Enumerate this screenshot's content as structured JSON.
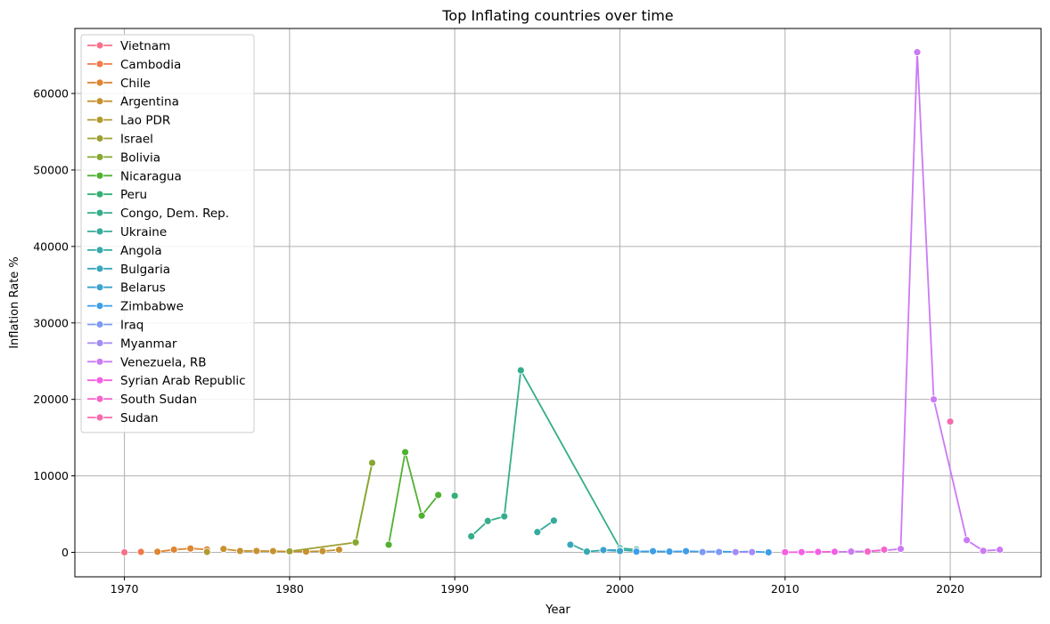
{
  "chart_data": {
    "type": "line",
    "title": "Top Inflating countries over time",
    "xlabel": "Year",
    "ylabel": "Inflation Rate %",
    "xlim": [
      1967,
      2025.5
    ],
    "ylim": [
      -3200,
      68500
    ],
    "x_ticks": [
      1970,
      1980,
      1990,
      2000,
      2010,
      2020
    ],
    "y_ticks": [
      0,
      10000,
      20000,
      30000,
      40000,
      50000,
      60000
    ],
    "grid": true,
    "legend_position": "upper-left",
    "series": [
      {
        "name": "Vietnam",
        "color": "#f77189",
        "points": [
          [
            1970,
            0
          ]
        ]
      },
      {
        "name": "Cambodia",
        "color": "#f17a4c",
        "points": [
          [
            1971,
            60
          ]
        ]
      },
      {
        "name": "Chile",
        "color": "#de8632",
        "points": [
          [
            1972,
            80
          ],
          [
            1973,
            350
          ],
          [
            1974,
            500
          ],
          [
            1975,
            380
          ]
        ]
      },
      {
        "name": "Argentina",
        "color": "#c69230",
        "points": [
          [
            1976,
            440
          ],
          [
            1977,
            180
          ],
          [
            1978,
            180
          ],
          [
            1979,
            160
          ],
          [
            1980,
            100
          ],
          [
            1981,
            100
          ],
          [
            1982,
            160
          ],
          [
            1983,
            340
          ]
        ]
      },
      {
        "name": "Lao PDR",
        "color": "#b19b31",
        "points": [
          [
            1975,
            60
          ]
        ]
      },
      {
        "name": "Israel",
        "color": "#9ea031",
        "points": [
          [
            1980,
            130
          ],
          [
            1984,
            1300
          ],
          [
            1985,
            11700
          ]
        ]
      },
      {
        "name": "Bolivia",
        "color": "#86a831",
        "points": [
          [
            1984,
            1300
          ],
          [
            1985,
            11700
          ]
        ]
      },
      {
        "name": "Nicaragua",
        "color": "#50b131",
        "points": [
          [
            1986,
            1000
          ],
          [
            1987,
            13100
          ],
          [
            1988,
            4800
          ],
          [
            1989,
            7500
          ]
        ]
      },
      {
        "name": "Peru",
        "color": "#33b073",
        "points": [
          [
            1990,
            7400
          ]
        ]
      },
      {
        "name": "Congo, Dem. Rep.",
        "color": "#35ad8b",
        "points": [
          [
            1991,
            2100
          ],
          [
            1992,
            4100
          ],
          [
            1993,
            4700
          ],
          [
            1994,
            23800
          ],
          [
            2000,
            550
          ],
          [
            2001,
            350
          ]
        ]
      },
      {
        "name": "Ukraine",
        "color": "#36ab9c",
        "points": [
          [
            1995,
            2650
          ],
          [
            1996,
            4150
          ]
        ]
      },
      {
        "name": "Angola",
        "color": "#37aaab",
        "points": [
          [
            1997,
            1100
          ],
          [
            1998,
            100
          ],
          [
            1999,
            280
          ],
          [
            2000,
            320
          ],
          [
            2001,
            150
          ],
          [
            2002,
            100
          ],
          [
            2003,
            80
          ]
        ]
      },
      {
        "name": "Bulgaria",
        "color": "#39a7ba",
        "points": [
          [
            1997,
            1000
          ]
        ]
      },
      {
        "name": "Belarus",
        "color": "#3ba3cd",
        "points": [
          [
            1999,
            300
          ],
          [
            2000,
            170
          ]
        ]
      },
      {
        "name": "Zimbabwe",
        "color": "#3e9ee7",
        "points": [
          [
            2001,
            100
          ],
          [
            2002,
            150
          ],
          [
            2003,
            100
          ],
          [
            2004,
            150
          ],
          [
            2005,
            100
          ],
          [
            2006,
            110
          ],
          [
            2007,
            60
          ],
          [
            2008,
            110
          ],
          [
            2009,
            0
          ]
        ]
      },
      {
        "name": "Iraq",
        "color": "#7d9af5",
        "points": [
          [
            2005,
            40
          ],
          [
            2006,
            50
          ]
        ]
      },
      {
        "name": "Myanmar",
        "color": "#a48cf4",
        "points": [
          [
            2007,
            30
          ],
          [
            2008,
            30
          ]
        ]
      },
      {
        "name": "Venezuela, RB",
        "color": "#cc7af4",
        "points": [
          [
            2013,
            50
          ],
          [
            2014,
            100
          ],
          [
            2015,
            150
          ],
          [
            2016,
            250
          ],
          [
            2017,
            450
          ],
          [
            2018,
            65400
          ],
          [
            2019,
            20000
          ],
          [
            2021,
            1600
          ],
          [
            2022,
            200
          ],
          [
            2023,
            340
          ]
        ]
      },
      {
        "name": "Syrian Arab Republic",
        "color": "#f45fe4",
        "points": [
          [
            2010,
            20
          ],
          [
            2011,
            30
          ],
          [
            2012,
            60
          ],
          [
            2013,
            80
          ]
        ]
      },
      {
        "name": "South Sudan",
        "color": "#f565cc",
        "points": [
          [
            2015,
            100
          ],
          [
            2016,
            350
          ]
        ]
      },
      {
        "name": "Sudan",
        "color": "#f66bad",
        "points": [
          [
            2020,
            17100
          ]
        ]
      }
    ]
  }
}
